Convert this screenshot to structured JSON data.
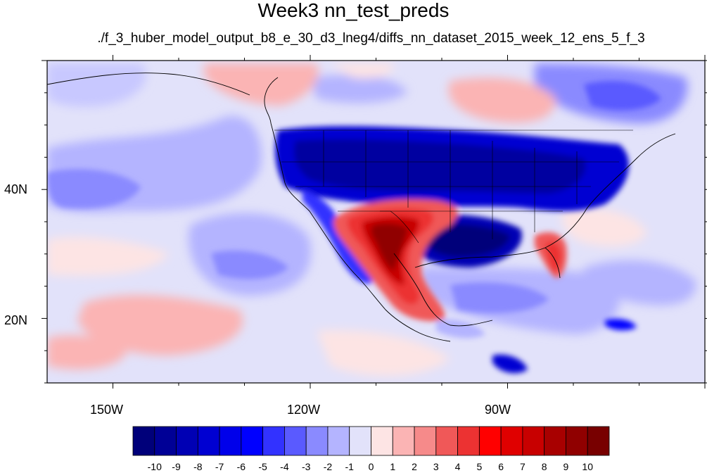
{
  "title": "Week3 nn_test_preds",
  "subtitle": "./f_3_huber_model_output_b8_e_30_d3_lneg4/diffs_nn_dataset_2015_week_12_ens_5_f_3",
  "map": {
    "projection": "cylindrical-equidistant",
    "lon_range": [
      -160,
      -60
    ],
    "lat_range": [
      10,
      60
    ],
    "lon_labels": [
      "150W",
      "120W",
      "90W"
    ],
    "lat_labels": [
      "40N",
      "20N"
    ],
    "boundaries": [
      "coastlines",
      "national-borders",
      "us-state-borders"
    ]
  },
  "colorbar": {
    "labels": [
      "-10",
      "-9",
      "-8",
      "-7",
      "-6",
      "-5",
      "-4",
      "-3",
      "-2",
      "-1",
      "0",
      "1",
      "2",
      "3",
      "4",
      "5",
      "6",
      "7",
      "8",
      "9",
      "10"
    ],
    "colors": [
      "#00007a",
      "#000096",
      "#0000b4",
      "#0000d2",
      "#0000ea",
      "#0000ff",
      "#3232ff",
      "#5a5aff",
      "#8a8aff",
      "#b4b4ff",
      "#e2e2fa",
      "#fde4e4",
      "#fbb4b4",
      "#f68a8a",
      "#f05858",
      "#ec3232",
      "#ff0000",
      "#e00000",
      "#c80000",
      "#a80000",
      "#900000",
      "#780000"
    ]
  }
}
